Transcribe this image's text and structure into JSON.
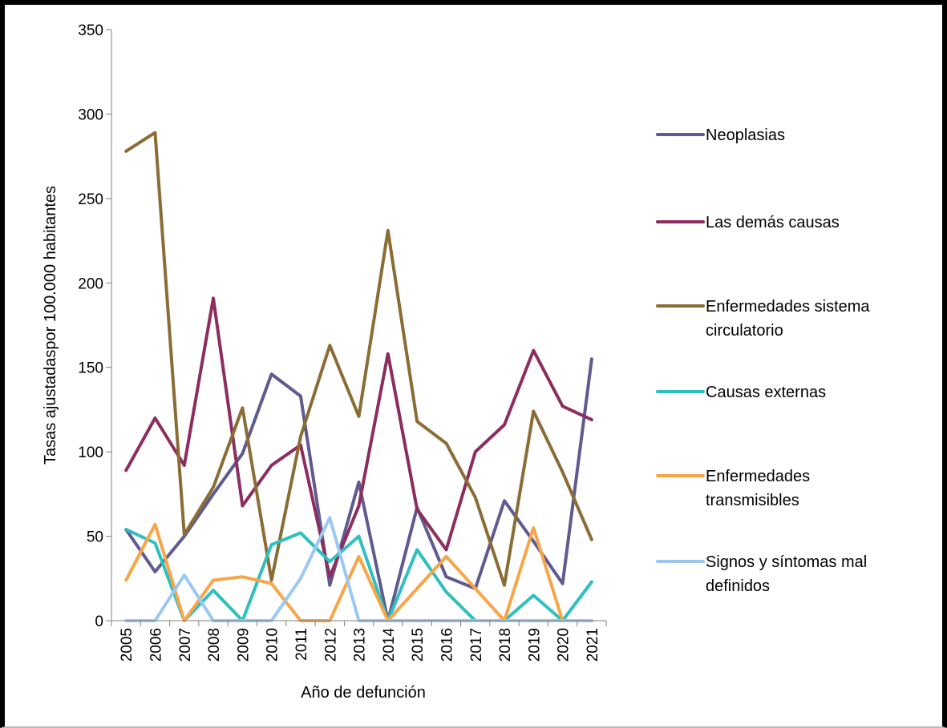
{
  "chart_data": {
    "type": "line",
    "title": "",
    "xlabel": "Año de defunción",
    "ylabel": "Tasas ajustadaspor 100.000 habitantes",
    "ylim": [
      0,
      350
    ],
    "yticks": [
      0,
      50,
      100,
      150,
      200,
      250,
      300,
      350
    ],
    "categories": [
      "2005",
      "2006",
      "2007",
      "2008",
      "2009",
      "2010",
      "2011",
      "2012",
      "2013",
      "2014",
      "2015",
      "2016",
      "2017",
      "2018",
      "2019",
      "2020",
      "2021"
    ],
    "grid": false,
    "legend_position": "right",
    "series": [
      {
        "name": "Neoplasias",
        "color": "#5f5a8f",
        "values": [
          54,
          29,
          50,
          75,
          99,
          146,
          133,
          21,
          82,
          0,
          67,
          26,
          19,
          71,
          47,
          22,
          155
        ]
      },
      {
        "name": "Las demás causas",
        "color": "#8c2d5f",
        "values": [
          89,
          120,
          92,
          191,
          68,
          92,
          104,
          26,
          68,
          158,
          66,
          42,
          100,
          116,
          160,
          127,
          119
        ]
      },
      {
        "name": "Enfermedades sistema circulatorio",
        "color": "#8a6d35",
        "values": [
          278,
          289,
          51,
          79,
          126,
          24,
          109,
          163,
          121,
          231,
          118,
          105,
          73,
          21,
          124,
          88,
          48
        ]
      },
      {
        "name": "Causas externas",
        "color": "#2fbfbf",
        "values": [
          54,
          46,
          0,
          18,
          0,
          45,
          52,
          35,
          50,
          0,
          42,
          17,
          0,
          0,
          15,
          0,
          23
        ]
      },
      {
        "name": "Enfermedades transmisibles",
        "color": "#f8a548",
        "values": [
          24,
          57,
          0,
          24,
          26,
          22,
          0,
          0,
          38,
          0,
          19,
          38,
          19,
          0,
          55,
          0,
          0
        ]
      },
      {
        "name": "Signos y síntomas mal definidos",
        "color": "#9bc8f2",
        "values": [
          0,
          0,
          27,
          0,
          0,
          0,
          25,
          61,
          0,
          0,
          0,
          0,
          0,
          0,
          0,
          0,
          0
        ]
      }
    ]
  }
}
